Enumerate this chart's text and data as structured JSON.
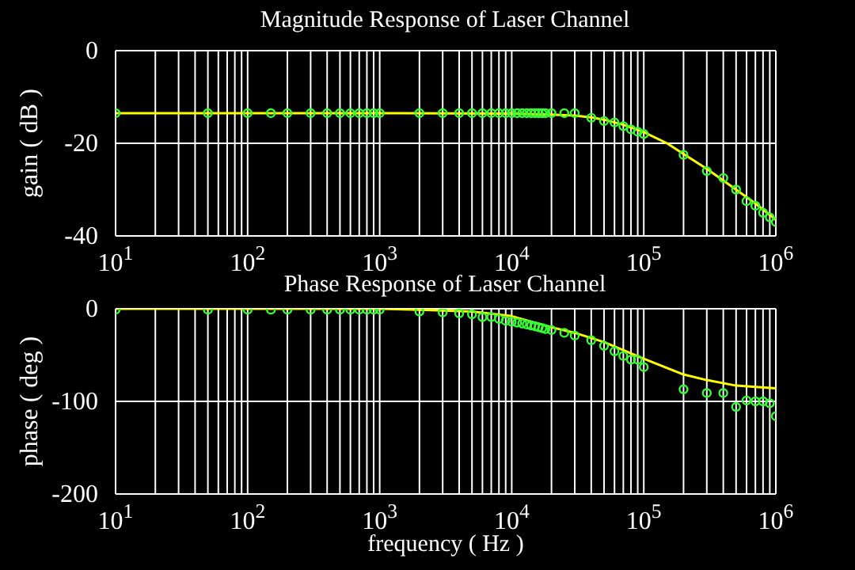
{
  "chart_data": [
    {
      "type": "scatter",
      "title": "Magnitude Response of Laser Channel",
      "ylabel": "gain ( dB )",
      "log": "x",
      "grid": true,
      "xlim": [
        10,
        1000000
      ],
      "ylim": [
        -40,
        0
      ],
      "yticks": [
        0,
        -20,
        -40
      ],
      "xticks": [
        {
          "value": 10,
          "label": "10$^{1}$"
        },
        {
          "value": 20,
          "label": null
        },
        {
          "value": 30,
          "label": null
        },
        {
          "value": 40,
          "label": null
        },
        {
          "value": 50,
          "label": null
        },
        {
          "value": 60,
          "label": null
        },
        {
          "value": 70,
          "label": null
        },
        {
          "value": 80,
          "label": null
        },
        {
          "value": 90,
          "label": null
        },
        {
          "value": 100,
          "label": "10$^{2}$"
        },
        {
          "value": 200,
          "label": null
        },
        {
          "value": 300,
          "label": null
        },
        {
          "value": 400,
          "label": null
        },
        {
          "value": 500,
          "label": null
        },
        {
          "value": 600,
          "label": null
        },
        {
          "value": 700,
          "label": null
        },
        {
          "value": 800,
          "label": null
        },
        {
          "value": 900,
          "label": null
        },
        {
          "value": 1000,
          "label": "10$^{3}$"
        },
        {
          "value": 2000,
          "label": null
        },
        {
          "value": 3000,
          "label": null
        },
        {
          "value": 4000,
          "label": null
        },
        {
          "value": 5000,
          "label": null
        },
        {
          "value": 6000,
          "label": null
        },
        {
          "value": 7000,
          "label": null
        },
        {
          "value": 8000,
          "label": null
        },
        {
          "value": 9000,
          "label": null
        },
        {
          "value": 10000,
          "label": "10$^{4}$"
        },
        {
          "value": 20000,
          "label": null
        },
        {
          "value": 30000,
          "label": null
        },
        {
          "value": 40000,
          "label": null
        },
        {
          "value": 50000,
          "label": null
        },
        {
          "value": 60000,
          "label": null
        },
        {
          "value": 70000,
          "label": null
        },
        {
          "value": 80000,
          "label": null
        },
        {
          "value": 90000,
          "label": null
        },
        {
          "value": 100000,
          "label": "10$^{5}$"
        },
        {
          "value": 200000,
          "label": null
        },
        {
          "value": 300000,
          "label": null
        },
        {
          "value": 400000,
          "label": null
        },
        {
          "value": 500000,
          "label": null
        },
        {
          "value": 600000,
          "label": null
        },
        {
          "value": 700000,
          "label": null
        },
        {
          "value": 800000,
          "label": null
        },
        {
          "value": 900000,
          "label": null
        },
        {
          "value": 1000000,
          "label": "10$^{6}$"
        }
      ],
      "series": [
        {
          "type": "scatter",
          "marker": "circle",
          "color": "#33ff33",
          "x": [
            10,
            50,
            100,
            150,
            200,
            300,
            400,
            500,
            600,
            700,
            800,
            900,
            1000,
            2000,
            3000,
            4000,
            5000,
            6000,
            7000,
            8000,
            9000,
            10000,
            11000,
            12000,
            13000,
            14000,
            15000,
            16000,
            17000,
            18000,
            20000,
            25000,
            30000,
            40000,
            50000,
            60000,
            70000,
            80000,
            90000,
            100000,
            200000,
            300000,
            400000,
            500000,
            600000,
            700000,
            800000,
            900000,
            1000000
          ],
          "values": [
            -13.5,
            -13.5,
            -13.5,
            -13.5,
            -13.5,
            -13.5,
            -13.5,
            -13.5,
            -13.5,
            -13.5,
            -13.5,
            -13.5,
            -13.5,
            -13.5,
            -13.5,
            -13.5,
            -13.5,
            -13.5,
            -13.5,
            -13.5,
            -13.5,
            -13.5,
            -13.5,
            -13.5,
            -13.5,
            -13.5,
            -13.5,
            -13.5,
            -13.5,
            -13.5,
            -13.5,
            -13.5,
            -13.5,
            -14.5,
            -15.2,
            -15.5,
            -16.3,
            -17,
            -17.5,
            -18,
            -22.5,
            -26,
            -27.5,
            -30,
            -32.5,
            -33.5,
            -35,
            -36,
            -37
          ]
        },
        {
          "type": "line",
          "color": "#ffff00",
          "x": [
            10,
            1000,
            10000,
            20000,
            30000,
            40000,
            50000,
            70000,
            100000,
            150000,
            200000,
            300000,
            500000,
            700000,
            1000000
          ],
          "values": [
            -13.5,
            -13.5,
            -13.6,
            -13.8,
            -14,
            -14.4,
            -14.9,
            -16,
            -17.6,
            -20,
            -22.3,
            -25.5,
            -30,
            -33,
            -36.5
          ]
        }
      ]
    },
    {
      "type": "scatter",
      "title": "Phase Response of Laser Channel",
      "xlabel": "frequency ( Hz )",
      "ylabel": "phase ( deg )",
      "log": "x",
      "grid": true,
      "xlim": [
        10,
        1000000
      ],
      "ylim": [
        -200,
        0
      ],
      "yticks": [
        0,
        -100,
        -200
      ],
      "xticks": [
        {
          "value": 10,
          "label": "10$^{1}$"
        },
        {
          "value": 20,
          "label": null
        },
        {
          "value": 30,
          "label": null
        },
        {
          "value": 40,
          "label": null
        },
        {
          "value": 50,
          "label": null
        },
        {
          "value": 60,
          "label": null
        },
        {
          "value": 70,
          "label": null
        },
        {
          "value": 80,
          "label": null
        },
        {
          "value": 90,
          "label": null
        },
        {
          "value": 100,
          "label": "10$^{2}$"
        },
        {
          "value": 200,
          "label": null
        },
        {
          "value": 300,
          "label": null
        },
        {
          "value": 400,
          "label": null
        },
        {
          "value": 500,
          "label": null
        },
        {
          "value": 600,
          "label": null
        },
        {
          "value": 700,
          "label": null
        },
        {
          "value": 800,
          "label": null
        },
        {
          "value": 900,
          "label": null
        },
        {
          "value": 1000,
          "label": "10$^{3}$"
        },
        {
          "value": 2000,
          "label": null
        },
        {
          "value": 3000,
          "label": null
        },
        {
          "value": 4000,
          "label": null
        },
        {
          "value": 5000,
          "label": null
        },
        {
          "value": 6000,
          "label": null
        },
        {
          "value": 7000,
          "label": null
        },
        {
          "value": 8000,
          "label": null
        },
        {
          "value": 9000,
          "label": null
        },
        {
          "value": 10000,
          "label": "10$^{4}$"
        },
        {
          "value": 20000,
          "label": null
        },
        {
          "value": 30000,
          "label": null
        },
        {
          "value": 40000,
          "label": null
        },
        {
          "value": 50000,
          "label": null
        },
        {
          "value": 60000,
          "label": null
        },
        {
          "value": 70000,
          "label": null
        },
        {
          "value": 80000,
          "label": null
        },
        {
          "value": 90000,
          "label": null
        },
        {
          "value": 100000,
          "label": "10$^{5}$"
        },
        {
          "value": 200000,
          "label": null
        },
        {
          "value": 300000,
          "label": null
        },
        {
          "value": 400000,
          "label": null
        },
        {
          "value": 500000,
          "label": null
        },
        {
          "value": 600000,
          "label": null
        },
        {
          "value": 700000,
          "label": null
        },
        {
          "value": 800000,
          "label": null
        },
        {
          "value": 900000,
          "label": null
        },
        {
          "value": 1000000,
          "label": "10$^{6}$"
        }
      ],
      "series": [
        {
          "type": "scatter",
          "marker": "circle",
          "color": "#33ff33",
          "x": [
            10,
            50,
            100,
            150,
            200,
            300,
            400,
            500,
            600,
            700,
            800,
            900,
            1000,
            2000,
            3000,
            4000,
            5000,
            6000,
            7000,
            8000,
            9000,
            10000,
            11000,
            12000,
            13000,
            14000,
            15000,
            16000,
            17000,
            18000,
            20000,
            25000,
            30000,
            40000,
            50000,
            60000,
            70000,
            80000,
            90000,
            100000,
            200000,
            300000,
            400000,
            500000,
            600000,
            700000,
            800000,
            900000,
            1000000
          ],
          "values": [
            -1,
            -1,
            -1,
            -1,
            -1,
            -1,
            -1,
            -1,
            -1,
            -1,
            -1,
            -1,
            -1,
            -3,
            -4,
            -5,
            -6,
            -9,
            -9,
            -11,
            -13,
            -14,
            -15,
            -16,
            -17,
            -18,
            -19,
            -20,
            -21,
            -22,
            -23,
            -26,
            -29,
            -34,
            -40,
            -46,
            -51,
            -55,
            -55,
            -63,
            -87,
            -91,
            -91,
            -106,
            -99,
            -100,
            -100,
            -102,
            -116
          ]
        },
        {
          "type": "line",
          "color": "#ffff00",
          "x": [
            10,
            1000,
            2000,
            5000,
            10000,
            20000,
            30000,
            50000,
            100000,
            200000,
            300000,
            500000,
            1000000
          ],
          "values": [
            0,
            0,
            -1,
            -3,
            -8,
            -20,
            -26,
            -36,
            -54,
            -71,
            -77,
            -83,
            -86
          ]
        }
      ]
    }
  ]
}
